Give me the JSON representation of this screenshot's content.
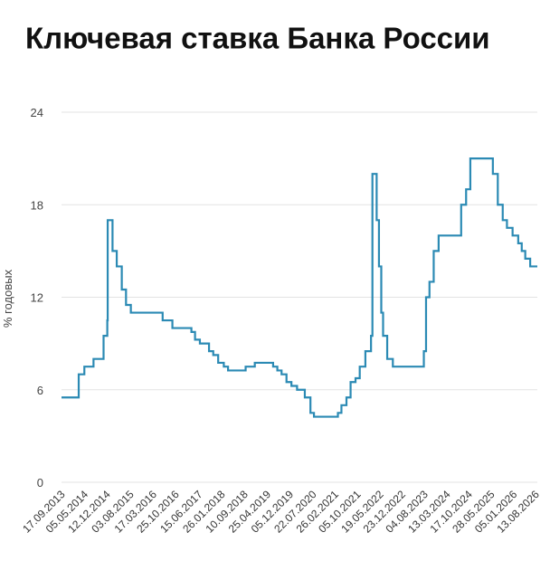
{
  "chart_data": {
    "type": "step-line",
    "title": "Ключевая ставка Банка России",
    "y_label": "% годовых",
    "color": "#2b8ab4",
    "grid": true,
    "ylim": [
      0,
      24
    ],
    "yticks": [
      0,
      6,
      12,
      18,
      24
    ],
    "xlim": [
      "13.09.2013",
      "25.08.2026"
    ],
    "xticks": [
      "17.09.2013",
      "05.05.2014",
      "12.12.2014",
      "03.08.2015",
      "17.03.2016",
      "25.10.2016",
      "15.06.2017",
      "26.01.2018",
      "10.09.2018",
      "25.04.2019",
      "05.12.2019",
      "22.07.2020",
      "26.02.2021",
      "05.10.2021",
      "19.05.2022",
      "23.12.2022",
      "04.08.2023",
      "13.03.2024",
      "17.10.2024",
      "28.05.2025",
      "05.01.2026",
      "13.08.2026"
    ],
    "x": [
      "13.09.2013",
      "03.03.2014",
      "28.04.2014",
      "28.07.2014",
      "05.11.2014",
      "12.12.2014",
      "16.12.2014",
      "02.02.2015",
      "16.03.2015",
      "05.05.2015",
      "16.06.2015",
      "03.08.2015",
      "14.06.2016",
      "19.09.2016",
      "27.03.2017",
      "02.05.2017",
      "19.06.2017",
      "18.09.2017",
      "30.10.2017",
      "18.12.2017",
      "12.02.2018",
      "26.03.2018",
      "17.09.2018",
      "17.12.2018",
      "17.06.2019",
      "29.07.2019",
      "09.09.2019",
      "28.10.2019",
      "16.12.2019",
      "10.02.2020",
      "27.04.2020",
      "22.06.2020",
      "27.07.2020",
      "22.03.2021",
      "26.04.2021",
      "15.06.2021",
      "26.07.2021",
      "13.09.2021",
      "25.10.2021",
      "20.12.2021",
      "14.02.2022",
      "28.02.2022",
      "11.04.2022",
      "04.05.2022",
      "27.05.2022",
      "14.06.2022",
      "25.07.2022",
      "19.09.2022",
      "24.07.2023",
      "15.08.2023",
      "18.09.2023",
      "30.10.2023",
      "18.12.2023",
      "29.07.2024",
      "16.09.2024",
      "28.10.2024",
      "09.06.2025",
      "28.07.2025",
      "15.09.2025",
      "27.10.2025",
      "22.12.2025",
      "16.02.2026",
      "23.03.2026",
      "27.04.2026",
      "15.06.2026"
    ],
    "values": [
      5.5,
      7,
      7.5,
      8,
      9.5,
      10.5,
      17,
      15,
      14,
      12.5,
      11.5,
      11,
      10.5,
      10,
      9.75,
      9.25,
      9,
      8.5,
      8.25,
      7.75,
      7.5,
      7.25,
      7.5,
      7.75,
      7.5,
      7.25,
      7,
      6.5,
      6.25,
      6,
      5.5,
      4.5,
      4.25,
      4.5,
      5,
      5.5,
      6.5,
      6.75,
      7.5,
      8.5,
      9.5,
      20,
      17,
      14,
      11,
      9.5,
      8,
      7.5,
      8.5,
      12,
      13,
      15,
      16,
      18,
      19,
      21,
      20,
      18,
      17,
      16.5,
      16,
      15.5,
      15,
      14.5,
      14
    ]
  }
}
